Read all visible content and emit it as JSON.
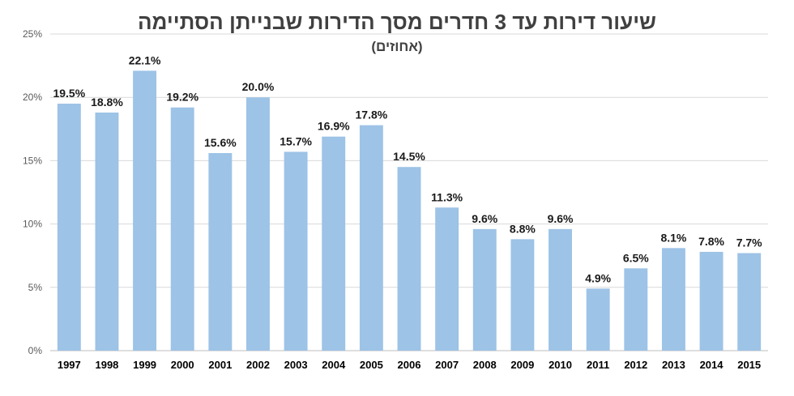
{
  "chart_data": {
    "type": "bar",
    "title": "שיעור דירות עד 3 חדרים מסך הדירות שבנייתן הסתיימה",
    "subtitle": "(אחוזים)",
    "categories": [
      "1997",
      "1998",
      "1999",
      "2000",
      "2001",
      "2002",
      "2003",
      "2004",
      "2005",
      "2006",
      "2007",
      "2008",
      "2009",
      "2010",
      "2011",
      "2012",
      "2013",
      "2014",
      "2015"
    ],
    "values": [
      19.5,
      18.8,
      22.1,
      19.2,
      15.6,
      20.0,
      15.7,
      16.9,
      17.8,
      14.5,
      11.3,
      9.6,
      8.8,
      9.6,
      4.9,
      6.5,
      8.1,
      7.8,
      7.7
    ],
    "data_labels": [
      "19.5%",
      "18.8%",
      "22.1%",
      "19.2%",
      "15.6%",
      "20.0%",
      "15.7%",
      "16.9%",
      "17.8%",
      "14.5%",
      "11.3%",
      "9.6%",
      "8.8%",
      "9.6%",
      "4.9%",
      "6.5%",
      "8.1%",
      "7.8%",
      "7.7%"
    ],
    "y_ticks": [
      0,
      5,
      10,
      15,
      20,
      25
    ],
    "y_tick_labels": [
      "0%",
      "5%",
      "10%",
      "15%",
      "20%",
      "25%"
    ],
    "ylim": [
      0,
      25
    ],
    "xlabel": "",
    "ylabel": "",
    "grid": true,
    "legend": "none",
    "colors": {
      "bar": "#9dc3e6",
      "grid": "#d9d9d9",
      "axis": "#bfbfbf"
    }
  }
}
